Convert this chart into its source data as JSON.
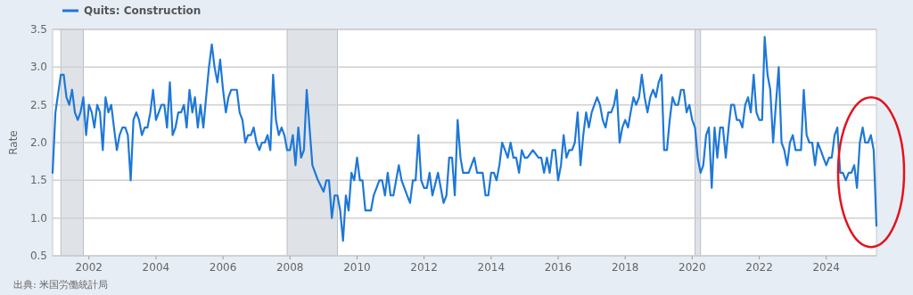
{
  "chart_data": {
    "type": "line",
    "ylabel": "Rate",
    "annotations": [
      "出典: 米国労働統計局"
    ],
    "xlim": [
      "2000-12",
      "2025-07"
    ],
    "ylim": [
      0.5,
      3.5
    ],
    "xticks": [
      "2002",
      "2004",
      "2006",
      "2008",
      "2010",
      "2012",
      "2014",
      "2016",
      "2018",
      "2020",
      "2022",
      "2024"
    ],
    "yticks": [
      0.5,
      {
        "value": 1,
        "label": "1.0"
      },
      1.5,
      {
        "value": 2,
        "label": "2.0"
      },
      2.5,
      {
        "value": 3,
        "label": "3.0"
      },
      3.5
    ],
    "grid": "y",
    "legend": "top left",
    "bands": [
      {
        "axis": "x",
        "from": "2001-03",
        "to": "2001-11",
        "color": "#dfe3e8"
      },
      {
        "axis": "x",
        "from": "2007-12",
        "to": "2009-06",
        "color": "#dfe3e8"
      },
      {
        "axis": "x",
        "from": "2020-02",
        "to": "2020-04",
        "color": "#dfe3e8"
      }
    ],
    "x": [
      "2000-12",
      "2001-01",
      "2001-03",
      "2001-04",
      "2001-05",
      "2001-06",
      "2001-07",
      "2001-08",
      "2001-09",
      "2001-10",
      "2001-11",
      "2001-12",
      "2002-01",
      "2002-02",
      "2002-03",
      "2002-04",
      "2002-05",
      "2002-06",
      "2002-07",
      "2002-08",
      "2002-09",
      "2002-10",
      "2002-11",
      "2002-12",
      "2003-01",
      "2003-02",
      "2003-03",
      "2003-04",
      "2003-05",
      "2003-06",
      "2003-07",
      "2003-08",
      "2003-09",
      "2003-10",
      "2003-11",
      "2003-12",
      "2004-01",
      "2004-02",
      "2004-03",
      "2004-04",
      "2004-05",
      "2004-06",
      "2004-07",
      "2004-08",
      "2004-09",
      "2004-10",
      "2004-11",
      "2004-12",
      "2005-01",
      "2005-02",
      "2005-03",
      "2005-04",
      "2005-05",
      "2005-06",
      "2005-07",
      "2005-08",
      "2005-09",
      "2005-10",
      "2005-11",
      "2005-12",
      "2006-01",
      "2006-02",
      "2006-03",
      "2006-04",
      "2006-06",
      "2006-07",
      "2006-08",
      "2006-09",
      "2006-10",
      "2006-11",
      "2006-12",
      "2007-01",
      "2007-02",
      "2007-03",
      "2007-04",
      "2007-05",
      "2007-06",
      "2007-07",
      "2007-08",
      "2007-09",
      "2007-10",
      "2007-11",
      "2007-12",
      "2008-01",
      "2008-02",
      "2008-03",
      "2008-04",
      "2008-05",
      "2008-06",
      "2008-07",
      "2008-08",
      "2008-09",
      "2008-11",
      "2009-01",
      "2009-02",
      "2009-03",
      "2009-04",
      "2009-05",
      "2009-06",
      "2009-07",
      "2009-08",
      "2009-09",
      "2009-10",
      "2009-11",
      "2009-12",
      "2010-01",
      "2010-02",
      "2010-03",
      "2010-04",
      "2010-06",
      "2010-07",
      "2010-09",
      "2010-10",
      "2010-11",
      "2010-12",
      "2011-01",
      "2011-02",
      "2011-04",
      "2011-05",
      "2011-07",
      "2011-08",
      "2011-09",
      "2011-10",
      "2011-11",
      "2011-12",
      "2012-01",
      "2012-02",
      "2012-03",
      "2012-04",
      "2012-06",
      "2012-07",
      "2012-08",
      "2012-09",
      "2012-10",
      "2012-11",
      "2012-12",
      "2013-01",
      "2013-02",
      "2013-03",
      "2013-05",
      "2013-07",
      "2013-08",
      "2013-10",
      "2013-11",
      "2013-12",
      "2014-01",
      "2014-02",
      "2014-03",
      "2014-04",
      "2014-05",
      "2014-06",
      "2014-07",
      "2014-08",
      "2014-09",
      "2014-10",
      "2014-11",
      "2014-12",
      "2015-01",
      "2015-02",
      "2015-04",
      "2015-06",
      "2015-07",
      "2015-08",
      "2015-09",
      "2015-10",
      "2015-11",
      "2015-12",
      "2016-01",
      "2016-02",
      "2016-03",
      "2016-04",
      "2016-05",
      "2016-06",
      "2016-07",
      "2016-08",
      "2016-09",
      "2016-10",
      "2016-11",
      "2016-12",
      "2017-01",
      "2017-03",
      "2017-04",
      "2017-05",
      "2017-06",
      "2017-07",
      "2017-08",
      "2017-09",
      "2017-10",
      "2017-11",
      "2017-12",
      "2018-01",
      "2018-02",
      "2018-03",
      "2018-04",
      "2018-05",
      "2018-06",
      "2018-07",
      "2018-08",
      "2018-09",
      "2018-10",
      "2018-11",
      "2018-12",
      "2019-01",
      "2019-02",
      "2019-03",
      "2019-04",
      "2019-05",
      "2019-06",
      "2019-07",
      "2019-08",
      "2019-09",
      "2019-10",
      "2019-11",
      "2019-12",
      "2020-01",
      "2020-02",
      "2020-03",
      "2020-04",
      "2020-05",
      "2020-06",
      "2020-07",
      "2020-08",
      "2020-09",
      "2020-10",
      "2020-11",
      "2020-12",
      "2021-01",
      "2021-02",
      "2021-03",
      "2021-04",
      "2021-05",
      "2021-06",
      "2021-07",
      "2021-08",
      "2021-09",
      "2021-10",
      "2021-11",
      "2021-12",
      "2022-01",
      "2022-02",
      "2022-03",
      "2022-04",
      "2022-05",
      "2022-06",
      "2022-07",
      "2022-08",
      "2022-09",
      "2022-10",
      "2022-11",
      "2022-12",
      "2023-01",
      "2023-02",
      "2023-03",
      "2023-04",
      "2023-05",
      "2023-06",
      "2023-07",
      "2023-08",
      "2023-09",
      "2023-10",
      "2023-11",
      "2023-12",
      "2024-01",
      "2024-02",
      "2024-03",
      "2024-04",
      "2024-05",
      "2024-06",
      "2024-07",
      "2024-08",
      "2024-09",
      "2024-10",
      "2024-11",
      "2024-12",
      "2025-01",
      "2025-02",
      "2025-03",
      "2025-04",
      "2025-05",
      "2025-06",
      "2025-07"
    ],
    "series": [
      {
        "name": "Quits: Construction",
        "color": "#1e78d7",
        "values": [
          1.6,
          2.4,
          2.9,
          2.9,
          2.6,
          2.5,
          2.7,
          2.4,
          2.3,
          2.4,
          2.6,
          2.1,
          2.5,
          2.4,
          2.2,
          2.5,
          2.4,
          1.9,
          2.6,
          2.4,
          2.5,
          2.2,
          1.9,
          2.1,
          2.2,
          2.2,
          2.1,
          1.5,
          2.3,
          2.4,
          2.3,
          2.1,
          2.2,
          2.2,
          2.4,
          2.7,
          2.3,
          2.4,
          2.5,
          2.5,
          2.2,
          2.8,
          2.1,
          2.2,
          2.4,
          2.4,
          2.5,
          2.2,
          2.7,
          2.4,
          2.6,
          2.2,
          2.5,
          2.2,
          2.6,
          3.0,
          3.3,
          3.0,
          2.8,
          3.1,
          2.7,
          2.4,
          2.6,
          2.7,
          2.7,
          2.4,
          2.3,
          2.0,
          2.1,
          2.1,
          2.2,
          2.0,
          1.9,
          2.0,
          2.0,
          2.1,
          1.9,
          2.9,
          2.3,
          2.1,
          2.2,
          2.1,
          1.9,
          1.9,
          2.1,
          1.7,
          2.2,
          1.8,
          1.9,
          2.7,
          2.2,
          1.7,
          1.5,
          1.35,
          1.5,
          1.5,
          1.0,
          1.3,
          1.3,
          1.1,
          0.7,
          1.3,
          1.1,
          1.6,
          1.5,
          1.8,
          1.5,
          1.5,
          1.1,
          1.1,
          1.3,
          1.5,
          1.5,
          1.3,
          1.6,
          1.3,
          1.3,
          1.7,
          1.5,
          1.3,
          1.2,
          1.5,
          1.5,
          2.1,
          1.5,
          1.4,
          1.4,
          1.6,
          1.3,
          1.6,
          1.4,
          1.2,
          1.3,
          1.8,
          1.8,
          1.3,
          2.3,
          1.8,
          1.6,
          1.6,
          1.8,
          1.6,
          1.6,
          1.3,
          1.3,
          1.6,
          1.6,
          1.5,
          1.7,
          2.0,
          1.9,
          1.8,
          2.0,
          1.8,
          1.8,
          1.6,
          1.9,
          1.8,
          1.8,
          1.9,
          1.8,
          1.8,
          1.6,
          1.8,
          1.6,
          1.9,
          1.9,
          1.5,
          1.7,
          2.1,
          1.8,
          1.9,
          1.9,
          2.0,
          2.4,
          1.7,
          2.1,
          2.4,
          2.2,
          2.4,
          2.6,
          2.5,
          2.3,
          2.2,
          2.4,
          2.4,
          2.5,
          2.7,
          2.0,
          2.2,
          2.3,
          2.2,
          2.4,
          2.6,
          2.5,
          2.6,
          2.9,
          2.6,
          2.4,
          2.6,
          2.7,
          2.6,
          2.8,
          2.9,
          1.9,
          1.9,
          2.3,
          2.6,
          2.5,
          2.5,
          2.7,
          2.7,
          2.4,
          2.5,
          2.3,
          2.2,
          1.8,
          1.6,
          1.7,
          2.1,
          2.2,
          1.4,
          2.2,
          1.8,
          2.2,
          2.2,
          1.8,
          2.2,
          2.5,
          2.5,
          2.3,
          2.3,
          2.2,
          2.5,
          2.6,
          2.4,
          2.9,
          2.4,
          2.3,
          2.3,
          3.4,
          2.9,
          2.7,
          2.0,
          2.5,
          3.0,
          2.0,
          1.9,
          1.7,
          2.0,
          2.1,
          1.9,
          1.9,
          1.9,
          2.7,
          2.1,
          2.0,
          2.0,
          1.7,
          2.0,
          1.9,
          1.8,
          1.7,
          1.8,
          1.8,
          2.1,
          2.2,
          1.6,
          1.6,
          1.5,
          1.6,
          1.6,
          1.7,
          1.4,
          2.0,
          2.2,
          2.0,
          2.0,
          2.1,
          1.9,
          0.9
        ]
      }
    ]
  }
}
